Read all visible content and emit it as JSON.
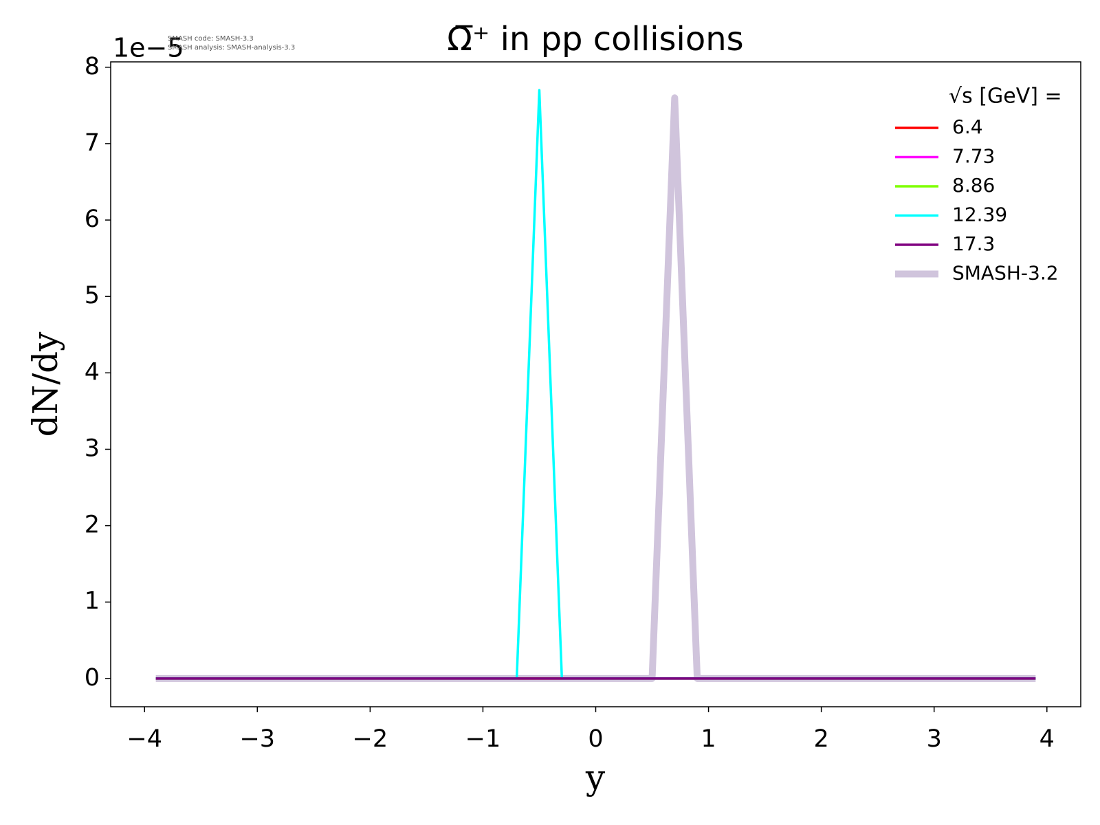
{
  "chart_data": {
    "type": "line",
    "title": "Ω̅⁺ in pp collisions",
    "x_label": "y",
    "y_label": "dN/dy",
    "offset_label": "1e−5",
    "annotations": [
      "SMASH code:      SMASH-3.3",
      "SMASH analysis: SMASH-analysis-3.3"
    ],
    "legend_title": "√s  [GeV] =",
    "legend": "upper right",
    "x": [
      -3.9,
      -0.7,
      -0.5,
      -0.3,
      0.5,
      0.7,
      0.9,
      3.9
    ],
    "series": [
      {
        "name": "SMASH-3.2",
        "color": "#d0c4dc",
        "values": [
          0,
          0,
          0,
          0,
          0,
          7.6,
          0,
          0
        ]
      },
      {
        "name": "6.4",
        "color": "#ff0000",
        "values": [
          0,
          0,
          0,
          0,
          0,
          0,
          0,
          0
        ]
      },
      {
        "name": "7.73",
        "color": "#ff00ff",
        "values": [
          0,
          0,
          0,
          0,
          0,
          0,
          0,
          0
        ]
      },
      {
        "name": "8.86",
        "color": "#7fff00",
        "values": [
          0,
          0,
          0,
          0,
          0,
          0,
          0,
          0
        ]
      },
      {
        "name": "12.39",
        "color": "#00ffff",
        "values": [
          0,
          0,
          7.7,
          0,
          0,
          0,
          0,
          0
        ]
      },
      {
        "name": "17.3",
        "color": "#800080",
        "values": [
          0,
          0,
          0,
          0,
          0,
          0,
          0,
          0
        ]
      }
    ],
    "xlim": [
      -4.3,
      4.3
    ],
    "ylim": [
      -0.37,
      8.07
    ],
    "xticks": [
      {
        "value": -4,
        "label": "−4"
      },
      {
        "value": -3,
        "label": "−3"
      },
      {
        "value": -2,
        "label": "−2"
      },
      {
        "value": -1,
        "label": "−1"
      },
      0,
      1,
      2,
      3,
      4
    ],
    "yticks": [
      0,
      1,
      2,
      3,
      4,
      5,
      6,
      7,
      8
    ]
  }
}
